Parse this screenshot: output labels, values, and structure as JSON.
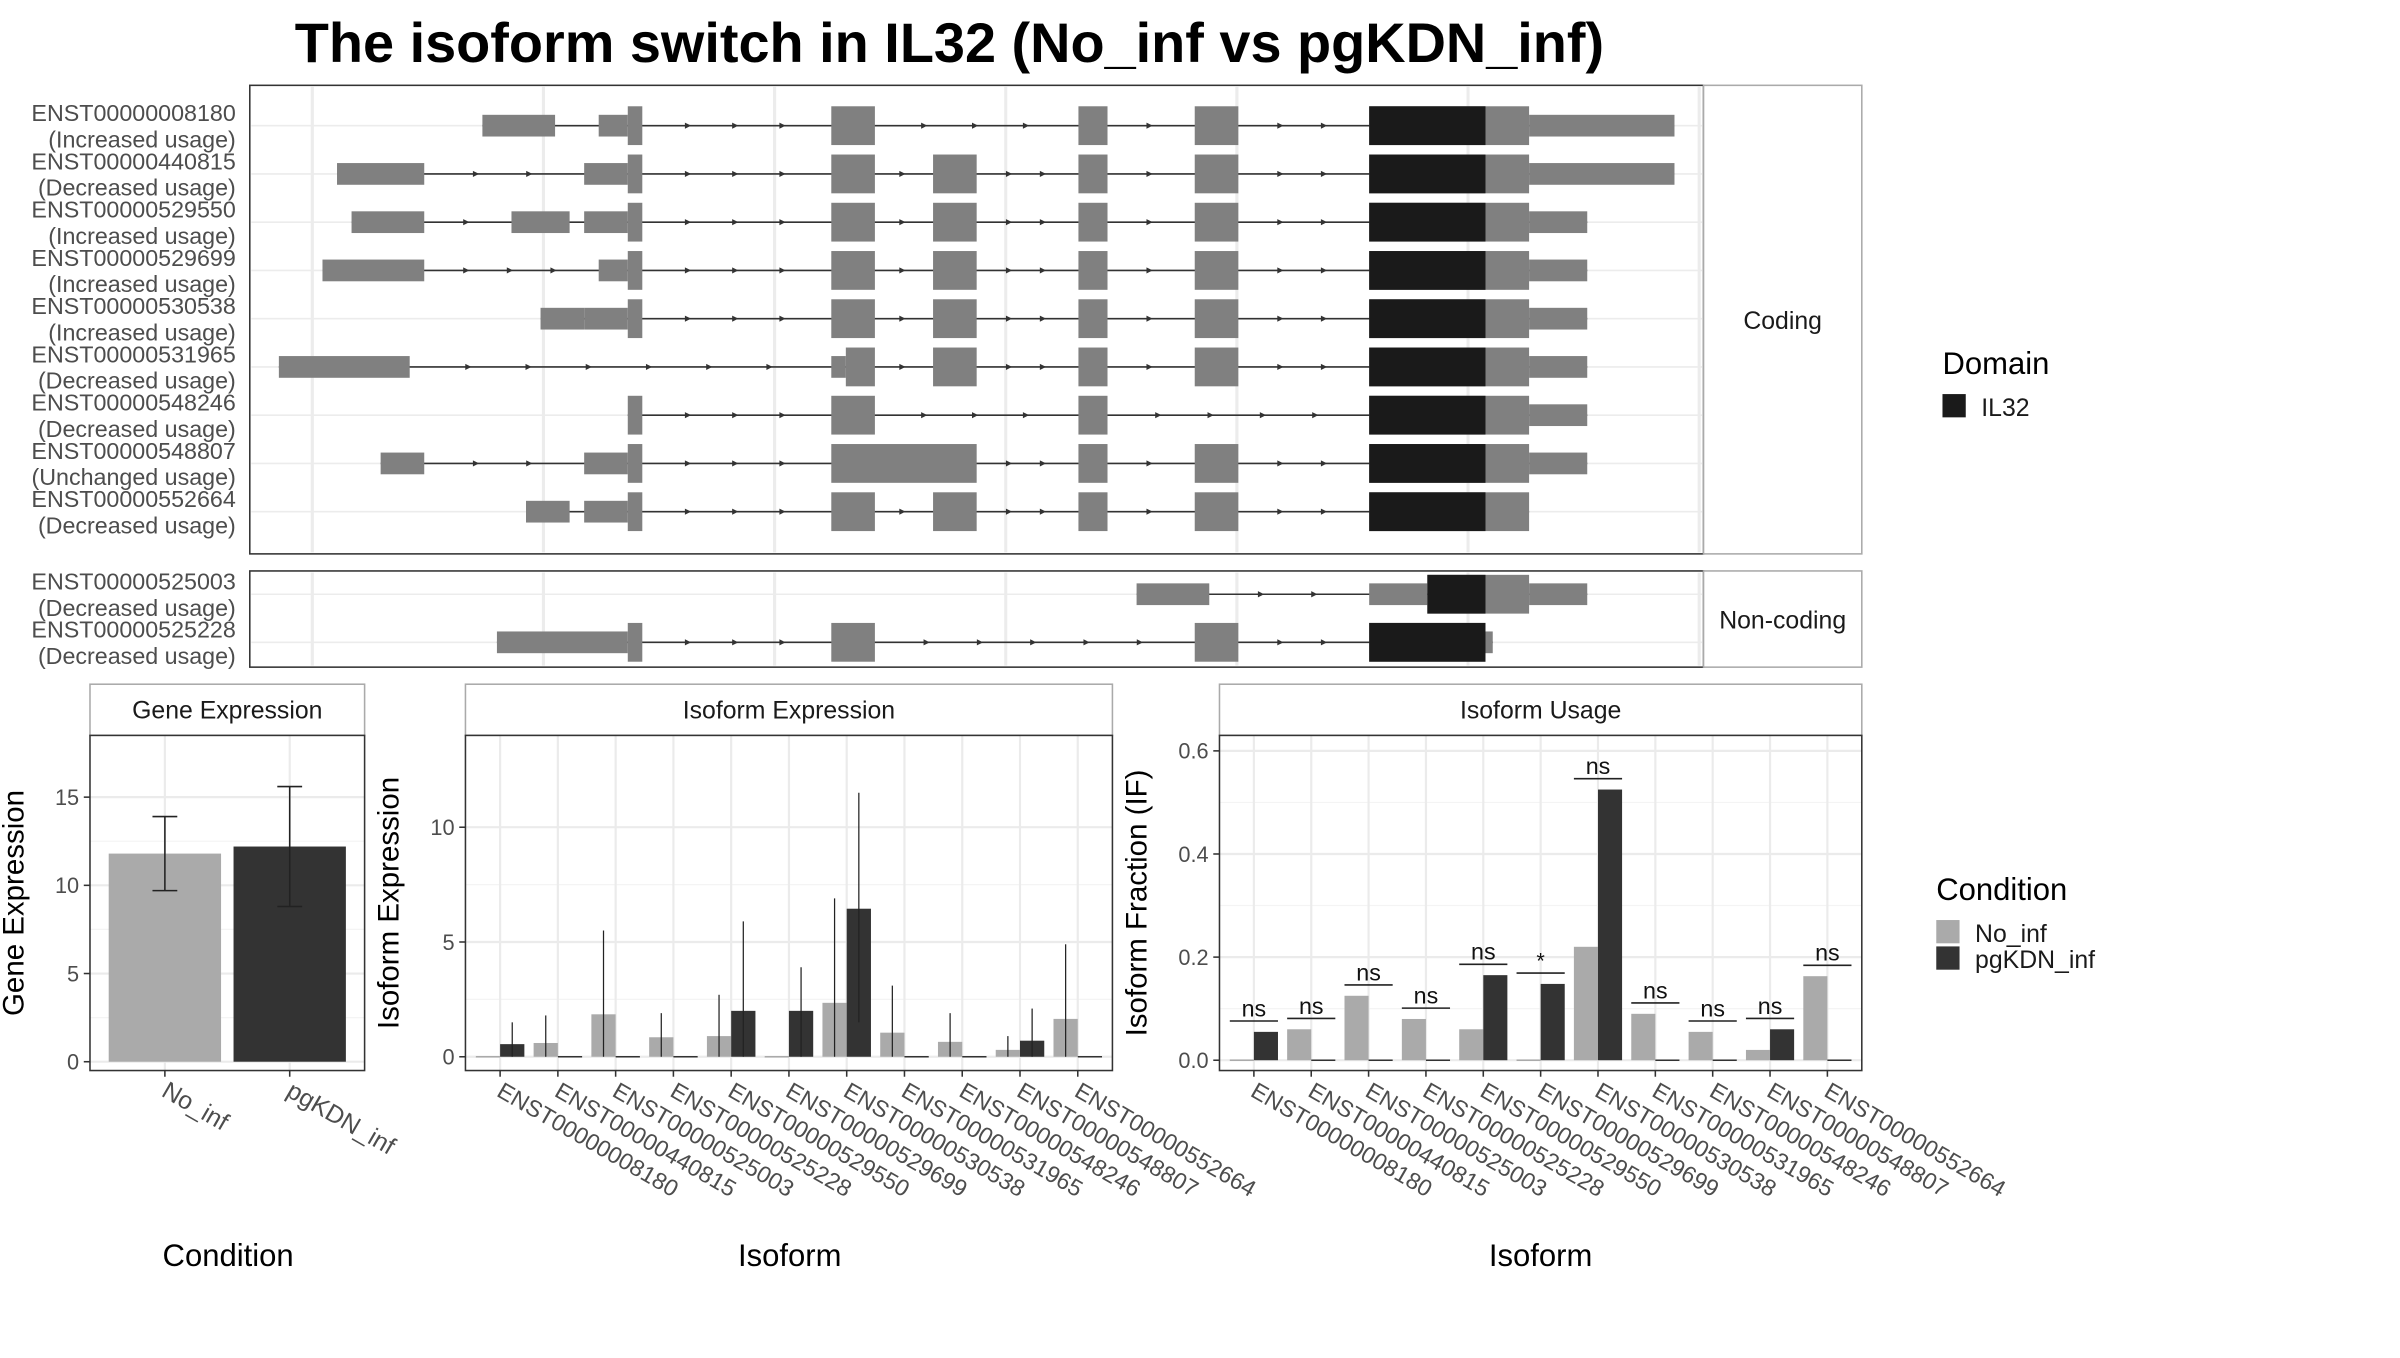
{
  "chart_data": [
    {
      "type": "structure",
      "title": "The isoform switch in IL32 (No_inf vs pgKDN_inf)",
      "legend_title": "Domain",
      "legend_entries": [
        {
          "label": "IL32",
          "color": "#1a1a1a"
        }
      ],
      "colors": {
        "exon": "#808080",
        "domain": "#1a1a1a"
      },
      "coordinate_unit": "relative genomic position (axis unlabeled)",
      "panels": [
        {
          "label": "Coding",
          "isoforms": [
            {
              "name": "ENST00000008180",
              "usage": "(Increased usage)",
              "exons": [
                [
                  0.16,
                  0.21,
                  "u"
                ],
                [
                  0.24,
                  0.26,
                  "u"
                ],
                [
                  0.26,
                  0.27,
                  "c"
                ],
                [
                  0.4,
                  0.43,
                  "c"
                ],
                [
                  0.57,
                  0.59,
                  "c"
                ],
                [
                  0.65,
                  0.68,
                  "c"
                ],
                [
                  0.77,
                  0.85,
                  "c"
                ],
                [
                  0.85,
                  0.88,
                  "c"
                ],
                [
                  0.88,
                  0.98,
                  "u"
                ]
              ],
              "domains": [
                [
                  0.77,
                  0.85
                ]
              ]
            },
            {
              "name": "ENST00000440815",
              "usage": "(Decreased usage)",
              "exons": [
                [
                  0.06,
                  0.12,
                  "u"
                ],
                [
                  0.23,
                  0.26,
                  "u"
                ],
                [
                  0.26,
                  0.27,
                  "c"
                ],
                [
                  0.4,
                  0.43,
                  "c"
                ],
                [
                  0.47,
                  0.5,
                  "c"
                ],
                [
                  0.57,
                  0.59,
                  "c"
                ],
                [
                  0.65,
                  0.68,
                  "c"
                ],
                [
                  0.77,
                  0.85,
                  "c"
                ],
                [
                  0.85,
                  0.88,
                  "c"
                ],
                [
                  0.88,
                  0.98,
                  "u"
                ]
              ],
              "domains": [
                [
                  0.77,
                  0.85
                ]
              ]
            },
            {
              "name": "ENST00000529550",
              "usage": "(Increased usage)",
              "exons": [
                [
                  0.07,
                  0.12,
                  "u"
                ],
                [
                  0.18,
                  0.22,
                  "u"
                ],
                [
                  0.23,
                  0.26,
                  "u"
                ],
                [
                  0.26,
                  0.27,
                  "c"
                ],
                [
                  0.4,
                  0.43,
                  "c"
                ],
                [
                  0.47,
                  0.5,
                  "c"
                ],
                [
                  0.57,
                  0.59,
                  "c"
                ],
                [
                  0.65,
                  0.68,
                  "c"
                ],
                [
                  0.77,
                  0.85,
                  "c"
                ],
                [
                  0.85,
                  0.88,
                  "c"
                ],
                [
                  0.88,
                  0.92,
                  "u"
                ]
              ],
              "domains": [
                [
                  0.77,
                  0.85
                ]
              ]
            },
            {
              "name": "ENST00000529699",
              "usage": "(Increased usage)",
              "exons": [
                [
                  0.05,
                  0.12,
                  "u"
                ],
                [
                  0.24,
                  0.26,
                  "u"
                ],
                [
                  0.26,
                  0.27,
                  "c"
                ],
                [
                  0.4,
                  0.43,
                  "c"
                ],
                [
                  0.47,
                  0.5,
                  "c"
                ],
                [
                  0.57,
                  0.59,
                  "c"
                ],
                [
                  0.65,
                  0.68,
                  "c"
                ],
                [
                  0.77,
                  0.85,
                  "c"
                ],
                [
                  0.85,
                  0.88,
                  "c"
                ],
                [
                  0.88,
                  0.92,
                  "u"
                ]
              ],
              "domains": [
                [
                  0.77,
                  0.85
                ]
              ]
            },
            {
              "name": "ENST00000530538",
              "usage": "(Increased usage)",
              "exons": [
                [
                  0.2,
                  0.23,
                  "u"
                ],
                [
                  0.23,
                  0.26,
                  "u"
                ],
                [
                  0.26,
                  0.27,
                  "c"
                ],
                [
                  0.4,
                  0.43,
                  "c"
                ],
                [
                  0.47,
                  0.5,
                  "c"
                ],
                [
                  0.57,
                  0.59,
                  "c"
                ],
                [
                  0.65,
                  0.68,
                  "c"
                ],
                [
                  0.77,
                  0.85,
                  "c"
                ],
                [
                  0.85,
                  0.88,
                  "c"
                ],
                [
                  0.88,
                  0.92,
                  "u"
                ]
              ],
              "domains": [
                [
                  0.77,
                  0.85
                ]
              ]
            },
            {
              "name": "ENST00000531965",
              "usage": "(Decreased usage)",
              "exons": [
                [
                  0.02,
                  0.11,
                  "u"
                ],
                [
                  0.4,
                  0.41,
                  "u"
                ],
                [
                  0.41,
                  0.43,
                  "c"
                ],
                [
                  0.47,
                  0.5,
                  "c"
                ],
                [
                  0.57,
                  0.59,
                  "c"
                ],
                [
                  0.65,
                  0.68,
                  "c"
                ],
                [
                  0.77,
                  0.85,
                  "c"
                ],
                [
                  0.85,
                  0.88,
                  "c"
                ],
                [
                  0.88,
                  0.92,
                  "u"
                ]
              ],
              "domains": [
                [
                  0.77,
                  0.85
                ]
              ]
            },
            {
              "name": "ENST00000548246",
              "usage": "(Decreased usage)",
              "exons": [
                [
                  0.26,
                  0.27,
                  "c"
                ],
                [
                  0.4,
                  0.43,
                  "c"
                ],
                [
                  0.57,
                  0.59,
                  "c"
                ],
                [
                  0.77,
                  0.85,
                  "c"
                ],
                [
                  0.85,
                  0.88,
                  "c"
                ],
                [
                  0.88,
                  0.92,
                  "u"
                ]
              ],
              "domains": [
                [
                  0.77,
                  0.85
                ]
              ]
            },
            {
              "name": "ENST00000548807",
              "usage": "(Unchanged usage)",
              "exons": [
                [
                  0.09,
                  0.12,
                  "u"
                ],
                [
                  0.23,
                  0.26,
                  "u"
                ],
                [
                  0.26,
                  0.27,
                  "c"
                ],
                [
                  0.4,
                  0.5,
                  "c"
                ],
                [
                  0.57,
                  0.59,
                  "c"
                ],
                [
                  0.65,
                  0.68,
                  "c"
                ],
                [
                  0.77,
                  0.85,
                  "c"
                ],
                [
                  0.85,
                  0.88,
                  "c"
                ],
                [
                  0.88,
                  0.92,
                  "u"
                ]
              ],
              "domains": [
                [
                  0.77,
                  0.85
                ]
              ]
            },
            {
              "name": "ENST00000552664",
              "usage": "(Decreased usage)",
              "exons": [
                [
                  0.19,
                  0.22,
                  "u"
                ],
                [
                  0.23,
                  0.26,
                  "u"
                ],
                [
                  0.26,
                  0.27,
                  "c"
                ],
                [
                  0.4,
                  0.43,
                  "c"
                ],
                [
                  0.47,
                  0.5,
                  "c"
                ],
                [
                  0.57,
                  0.59,
                  "c"
                ],
                [
                  0.65,
                  0.68,
                  "c"
                ],
                [
                  0.77,
                  0.85,
                  "c"
                ],
                [
                  0.85,
                  0.88,
                  "c"
                ]
              ],
              "domains": [
                [
                  0.77,
                  0.85
                ]
              ]
            }
          ]
        },
        {
          "label": "Non-coding",
          "isoforms": [
            {
              "name": "ENST00000525003",
              "usage": "(Decreased usage)",
              "exons": [
                [
                  0.61,
                  0.66,
                  "u"
                ],
                [
                  0.77,
                  0.81,
                  "u"
                ],
                [
                  0.81,
                  0.85,
                  "c"
                ],
                [
                  0.85,
                  0.88,
                  "c"
                ],
                [
                  0.88,
                  0.92,
                  "u"
                ]
              ],
              "domains": [
                [
                  0.81,
                  0.85
                ]
              ]
            },
            {
              "name": "ENST00000525228",
              "usage": "(Decreased usage)",
              "exons": [
                [
                  0.17,
                  0.26,
                  "u"
                ],
                [
                  0.26,
                  0.27,
                  "c"
                ],
                [
                  0.4,
                  0.43,
                  "c"
                ],
                [
                  0.65,
                  0.68,
                  "c"
                ],
                [
                  0.77,
                  0.85,
                  "c"
                ],
                [
                  0.85,
                  0.855,
                  "u"
                ]
              ],
              "domains": [
                [
                  0.77,
                  0.85
                ]
              ]
            }
          ]
        }
      ]
    },
    {
      "type": "bar",
      "strip": "Gene Expression",
      "xlabel": "Condition",
      "ylabel": "Gene Expression",
      "categories": [
        "No_inf",
        "pgKDN_inf"
      ],
      "values": [
        11.8,
        12.2
      ],
      "error": [
        [
          9.7,
          13.9
        ],
        [
          8.8,
          15.6
        ]
      ],
      "colors": [
        "#aaaaaa",
        "#333333"
      ],
      "ylim": [
        -0.5,
        18.5
      ],
      "yticks": [
        0,
        5,
        10,
        15
      ]
    },
    {
      "type": "bar",
      "strip": "Isoform Expression",
      "xlabel": "Isoform",
      "ylabel": "Isoform Expression",
      "categories": [
        "ENST00000008180",
        "ENST00000440815",
        "ENST00000525003",
        "ENST00000525228",
        "ENST00000529550",
        "ENST00000529699",
        "ENST00000530538",
        "ENST00000531965",
        "ENST00000548246",
        "ENST00000548807",
        "ENST00000552664"
      ],
      "series": [
        {
          "name": "No_inf",
          "color": "#aaaaaa",
          "values": [
            0.0,
            0.6,
            1.85,
            0.85,
            0.9,
            0.0,
            2.35,
            1.05,
            0.65,
            0.3,
            1.65
          ],
          "error": [
            [
              0,
              0
            ],
            [
              0,
              1.8
            ],
            [
              0,
              5.5
            ],
            [
              0,
              1.9
            ],
            [
              0,
              2.7
            ],
            [
              0,
              0
            ],
            [
              0,
              6.9
            ],
            [
              0,
              3.1
            ],
            [
              0,
              1.9
            ],
            [
              0,
              0.9
            ],
            [
              0,
              4.9
            ]
          ]
        },
        {
          "name": "pgKDN_inf",
          "color": "#333333",
          "values": [
            0.55,
            0.0,
            0.0,
            0.0,
            2.0,
            2.0,
            6.45,
            0.0,
            0.0,
            0.7,
            0.0
          ],
          "error": [
            [
              0,
              1.5
            ],
            [
              0,
              0
            ],
            [
              0,
              0
            ],
            [
              0,
              0
            ],
            [
              0,
              5.9
            ],
            [
              0,
              3.9
            ],
            [
              1.5,
              11.5
            ],
            [
              0,
              0
            ],
            [
              0,
              0
            ],
            [
              0,
              2.1
            ],
            [
              0,
              0
            ]
          ]
        }
      ],
      "ylim": [
        -0.6,
        14.0
      ],
      "yticks": [
        0,
        5,
        10
      ]
    },
    {
      "type": "bar",
      "strip": "Isoform Usage",
      "xlabel": "Isoform",
      "ylabel": "Isoform Fraction (IF)",
      "categories": [
        "ENST00000008180",
        "ENST00000440815",
        "ENST00000525003",
        "ENST00000525228",
        "ENST00000529550",
        "ENST00000529699",
        "ENST00000530538",
        "ENST00000531965",
        "ENST00000548246",
        "ENST00000548807",
        "ENST00000552664"
      ],
      "series": [
        {
          "name": "No_inf",
          "color": "#aaaaaa",
          "values": [
            0.0,
            0.06,
            0.125,
            0.08,
            0.06,
            0.0,
            0.22,
            0.09,
            0.055,
            0.02,
            0.163
          ]
        },
        {
          "name": "pgKDN_inf",
          "color": "#333333",
          "values": [
            0.055,
            0.0,
            0.0,
            0.0,
            0.165,
            0.148,
            0.525,
            0.0,
            0.0,
            0.06,
            0.0
          ]
        }
      ],
      "significance": [
        "ns",
        "ns",
        "ns",
        "ns",
        "ns",
        "*",
        "ns",
        "ns",
        "ns",
        "ns",
        "ns"
      ],
      "ylim": [
        -0.02,
        0.63
      ],
      "yticks": [
        0.0,
        0.2,
        0.4,
        0.6
      ]
    }
  ],
  "legend_condition": {
    "title": "Condition",
    "entries": [
      {
        "label": "No_inf",
        "color": "#aaaaaa"
      },
      {
        "label": "pgKDN_inf",
        "color": "#333333"
      }
    ]
  }
}
